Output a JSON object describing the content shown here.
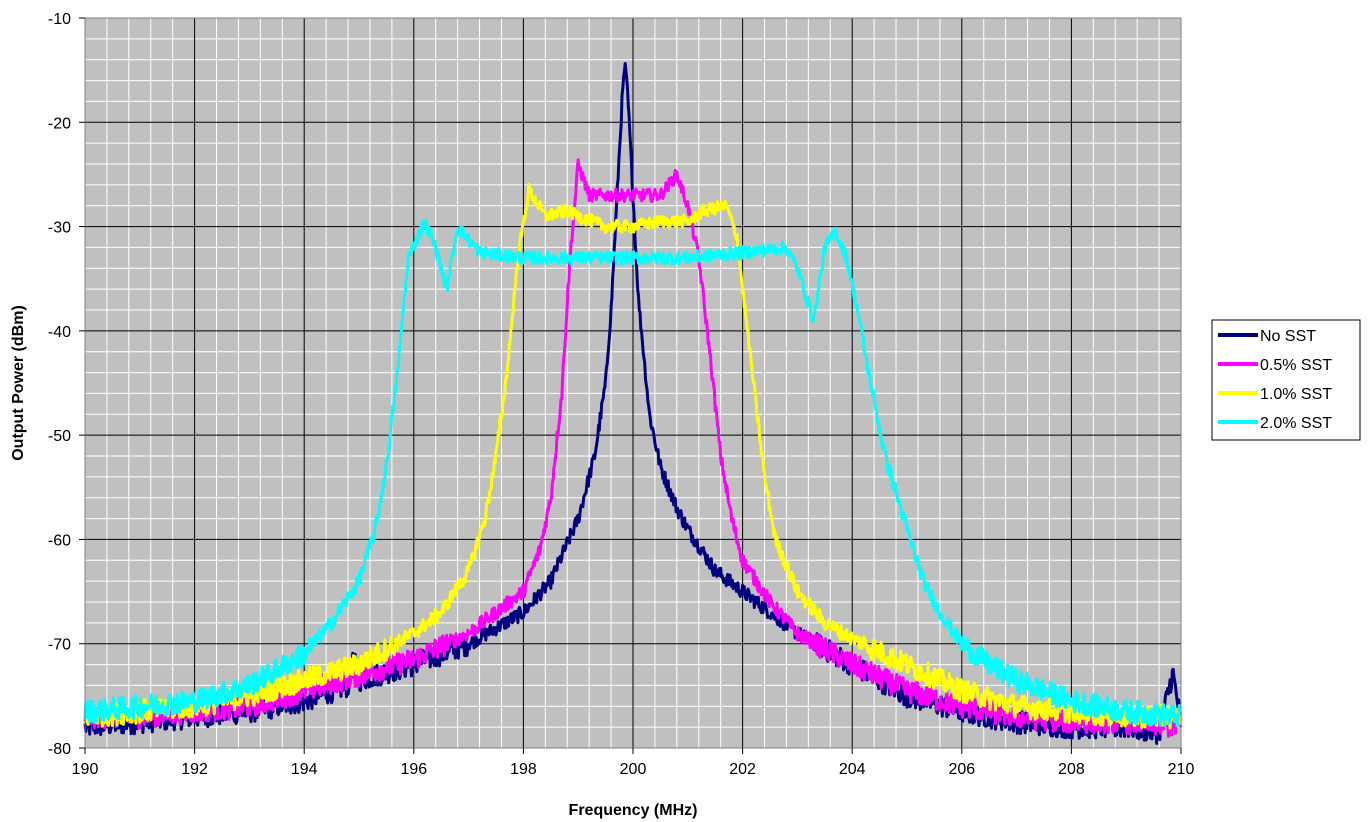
{
  "chart_data": {
    "type": "line",
    "title": "",
    "xlabel": "Frequency (MHz)",
    "ylabel": "Output Power (dBm)",
    "xlim": [
      190,
      210
    ],
    "ylim": [
      -80,
      -10
    ],
    "x_ticks": [
      190,
      192,
      194,
      196,
      198,
      200,
      202,
      204,
      206,
      208,
      210
    ],
    "y_ticks": [
      -80,
      -70,
      -60,
      -50,
      -40,
      -30,
      -20,
      -10
    ],
    "x_tick_labels": [
      "190",
      "192",
      "194",
      "196",
      "198",
      "200",
      "202",
      "204",
      "206",
      "208",
      "210"
    ],
    "y_tick_labels": [
      "-80",
      "-70",
      "-60",
      "-50",
      "-40",
      "-30",
      "-20",
      "-10"
    ],
    "grid": true,
    "plot_background": "#c0c0c0",
    "legend_position": "right",
    "series": [
      {
        "name": "No SST",
        "color": "#000080",
        "points": [
          [
            190,
            -78
          ],
          [
            191,
            -77.5
          ],
          [
            192,
            -77
          ],
          [
            193,
            -76.5
          ],
          [
            194,
            -75.5
          ],
          [
            194.8,
            -74
          ],
          [
            194.9,
            -71.5
          ],
          [
            195,
            -73.5
          ],
          [
            196,
            -72
          ],
          [
            197,
            -70
          ],
          [
            198,
            -67
          ],
          [
            198.5,
            -64
          ],
          [
            199,
            -58
          ],
          [
            199.3,
            -52
          ],
          [
            199.5,
            -45
          ],
          [
            199.6,
            -38
          ],
          [
            199.7,
            -28
          ],
          [
            199.8,
            -18
          ],
          [
            199.85,
            -14.5
          ],
          [
            199.9,
            -17
          ],
          [
            200,
            -27
          ],
          [
            200.1,
            -37
          ],
          [
            200.3,
            -48
          ],
          [
            200.5,
            -53
          ],
          [
            200.8,
            -57
          ],
          [
            201,
            -59
          ],
          [
            201.5,
            -63
          ],
          [
            202,
            -65
          ],
          [
            202.5,
            -67
          ],
          [
            203,
            -69
          ],
          [
            204,
            -72
          ],
          [
            205,
            -75
          ],
          [
            206,
            -76.5
          ],
          [
            207,
            -77.5
          ],
          [
            208,
            -78
          ],
          [
            209,
            -78
          ],
          [
            209.6,
            -78.5
          ],
          [
            209.75,
            -75
          ],
          [
            209.85,
            -72.8
          ],
          [
            209.95,
            -76
          ],
          [
            210,
            -78
          ]
        ]
      },
      {
        "name": "0.5% SST",
        "color": "#ff00ff",
        "points": [
          [
            190,
            -77
          ],
          [
            191,
            -77
          ],
          [
            192,
            -76.5
          ],
          [
            193,
            -76
          ],
          [
            194,
            -74.5
          ],
          [
            195,
            -73
          ],
          [
            196,
            -71.5
          ],
          [
            197,
            -69
          ],
          [
            198,
            -65
          ],
          [
            198.3,
            -61
          ],
          [
            198.5,
            -56
          ],
          [
            198.7,
            -46
          ],
          [
            198.85,
            -33
          ],
          [
            199,
            -24
          ],
          [
            199.2,
            -27
          ],
          [
            199.5,
            -27
          ],
          [
            200,
            -27
          ],
          [
            200.5,
            -27
          ],
          [
            200.8,
            -25
          ],
          [
            201,
            -28
          ],
          [
            201.2,
            -33
          ],
          [
            201.4,
            -42
          ],
          [
            201.6,
            -52
          ],
          [
            201.8,
            -58
          ],
          [
            202,
            -62
          ],
          [
            202.5,
            -66
          ],
          [
            203,
            -69
          ],
          [
            204,
            -72
          ],
          [
            205,
            -74.5
          ],
          [
            206,
            -76
          ],
          [
            207,
            -77
          ],
          [
            208,
            -77.5
          ],
          [
            209,
            -77.5
          ],
          [
            210,
            -78
          ]
        ]
      },
      {
        "name": "1.0% SST",
        "color": "#ffff00",
        "points": [
          [
            190,
            -77
          ],
          [
            191,
            -76.5
          ],
          [
            192,
            -76
          ],
          [
            193,
            -75
          ],
          [
            194,
            -73.5
          ],
          [
            195,
            -72
          ],
          [
            196,
            -69
          ],
          [
            196.5,
            -67
          ],
          [
            197,
            -63
          ],
          [
            197.3,
            -58
          ],
          [
            197.5,
            -52
          ],
          [
            197.7,
            -44
          ],
          [
            197.9,
            -33
          ],
          [
            198.1,
            -26.5
          ],
          [
            198.4,
            -29
          ],
          [
            198.8,
            -28.5
          ],
          [
            199,
            -29
          ],
          [
            199.5,
            -30
          ],
          [
            200,
            -30
          ],
          [
            200.5,
            -29.5
          ],
          [
            201,
            -29.5
          ],
          [
            201.3,
            -28.5
          ],
          [
            201.7,
            -28
          ],
          [
            201.9,
            -31
          ],
          [
            202,
            -36
          ],
          [
            202.2,
            -45
          ],
          [
            202.4,
            -54
          ],
          [
            202.6,
            -60
          ],
          [
            203,
            -65
          ],
          [
            203.5,
            -68
          ],
          [
            204,
            -69.5
          ],
          [
            205,
            -72
          ],
          [
            206,
            -74.5
          ],
          [
            207,
            -76
          ],
          [
            208,
            -76.5
          ],
          [
            209,
            -77
          ],
          [
            210,
            -77
          ]
        ]
      },
      {
        "name": "2.0% SST",
        "color": "#00ffff",
        "points": [
          [
            190,
            -76.5
          ],
          [
            191,
            -76
          ],
          [
            192,
            -75.5
          ],
          [
            193,
            -74
          ],
          [
            194,
            -71
          ],
          [
            194.5,
            -68
          ],
          [
            195,
            -64
          ],
          [
            195.3,
            -59
          ],
          [
            195.5,
            -53
          ],
          [
            195.7,
            -44
          ],
          [
            195.9,
            -33
          ],
          [
            196.2,
            -29.5
          ],
          [
            196.4,
            -32
          ],
          [
            196.6,
            -36
          ],
          [
            196.8,
            -30
          ],
          [
            197.2,
            -32.5
          ],
          [
            198,
            -33
          ],
          [
            199,
            -33
          ],
          [
            200,
            -33
          ],
          [
            201,
            -33
          ],
          [
            202,
            -32.5
          ],
          [
            202.8,
            -32
          ],
          [
            203,
            -34
          ],
          [
            203.3,
            -39
          ],
          [
            203.5,
            -32
          ],
          [
            203.7,
            -30.5
          ],
          [
            203.9,
            -33
          ],
          [
            204.1,
            -38
          ],
          [
            204.3,
            -44
          ],
          [
            204.6,
            -52
          ],
          [
            205,
            -59
          ],
          [
            205.3,
            -64
          ],
          [
            205.6,
            -67
          ],
          [
            206,
            -70
          ],
          [
            206.5,
            -72
          ],
          [
            207,
            -73.5
          ],
          [
            208,
            -75.5
          ],
          [
            209,
            -76.5
          ],
          [
            210,
            -77
          ]
        ]
      }
    ]
  }
}
